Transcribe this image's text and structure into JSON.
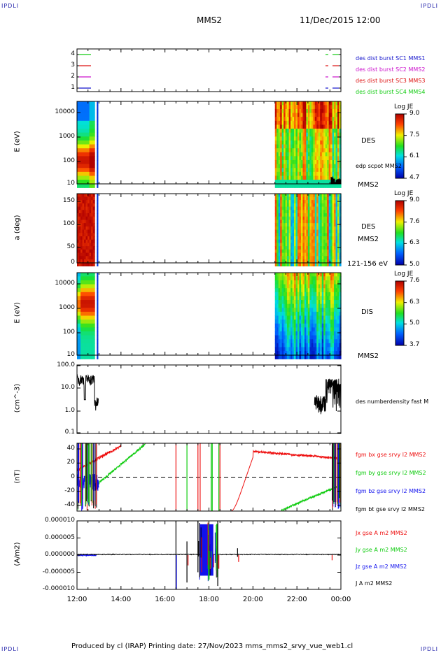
{
  "header": {
    "corner_tl": "IPDLI",
    "corner_tr": "IPDLI",
    "spacecraft": "MMS2",
    "date": "11/Dec/2015 12:00"
  },
  "footer": {
    "text": "Produced by cl (IRAP)   Printing date: 27/Nov/2023   mms_mms2_srvy_vue_web1.cl",
    "corner_bl": "IPDLI",
    "corner_br": "IPDLI"
  },
  "colors": {
    "bx": "#ee1111",
    "by": "#11cc11",
    "bz": "#1111ee",
    "bt": "#000000",
    "sc1": "#1111cc",
    "sc2": "#cc11cc",
    "sc3": "#dd1111",
    "sc4": "#11cc11"
  },
  "time_axis": {
    "ticks": [
      "12:00",
      "14:00",
      "16:00",
      "18:00",
      "20:00",
      "22:00",
      "00:00"
    ]
  },
  "chart_data": [
    {
      "type": "line",
      "id": "burst",
      "yticks": [
        "4",
        "3",
        "2",
        "1"
      ],
      "legend": [
        {
          "label": "des dist burst SC1 MMS1",
          "color": "#1111cc"
        },
        {
          "label": "des dist burst SC2 MMS2",
          "color": "#cc11cc"
        },
        {
          "label": "des dist burst SC3 MMS3",
          "color": "#dd1111"
        },
        {
          "label": "des dist burst SC4 MMS4",
          "color": "#11cc11"
        }
      ]
    },
    {
      "type": "heatmap",
      "id": "des_energy",
      "ylabel": "E (eV)",
      "yticks": [
        "10000",
        "1000",
        "100",
        "10"
      ],
      "side_label": "DES",
      "sub_label": "edp scpot MMS2",
      "bottom_label": "MMS2",
      "colorbar": {
        "title": "Log JE",
        "ticks": [
          "9.0",
          "7.5",
          "6.1",
          "4.7"
        ]
      }
    },
    {
      "type": "heatmap",
      "id": "des_pitch",
      "ylabel": "a (deg)",
      "yticks": [
        "150",
        "100",
        "50",
        "0"
      ],
      "side_label": "DES",
      "sub_label": "MMS2",
      "bottom_label": "121-156 eV",
      "colorbar": {
        "title": "Log JE",
        "ticks": [
          "9.0",
          "7.6",
          "6.3",
          "5.0"
        ]
      }
    },
    {
      "type": "heatmap",
      "id": "dis_energy",
      "ylabel": "E (eV)",
      "yticks": [
        "10000",
        "1000",
        "100",
        "10"
      ],
      "side_label": "DIS",
      "bottom_label": "MMS2",
      "colorbar": {
        "title": "Log JE",
        "ticks": [
          "7.6",
          "6.3",
          "5.0",
          "3.7"
        ]
      }
    },
    {
      "type": "line",
      "id": "density",
      "ylabel": "(cm^-3)",
      "yticks": [
        "100.0",
        "10.0",
        "1.0",
        "0.1"
      ],
      "legend": [
        {
          "label": "des numberdensity fast M",
          "color": "#000000"
        }
      ]
    },
    {
      "type": "line",
      "id": "bfield",
      "ylabel": "(nT)",
      "yticks": [
        "40",
        "20",
        "0",
        "-20",
        "-40"
      ],
      "legend": [
        {
          "label": "fgm bx gse srvy l2 MMS2",
          "color": "#ee1111"
        },
        {
          "label": "fgm by gse srvy l2 MMS2",
          "color": "#11cc11"
        },
        {
          "label": "fgm bz gse srvy l2 MMS2",
          "color": "#1111ee"
        },
        {
          "label": "fgm bt gse srvy l2 MMS2",
          "color": "#000000"
        }
      ]
    },
    {
      "type": "line",
      "id": "current",
      "ylabel": "(A/m2)",
      "yticks": [
        "0.000010",
        "0.000005",
        "0.000000",
        "-0.000005",
        "-0.000010"
      ],
      "legend": [
        {
          "label": "Jx gse A m2 MMS2",
          "color": "#ee1111"
        },
        {
          "label": "Jy gse A m2 MMS2",
          "color": "#11cc11"
        },
        {
          "label": "Jz gse A m2 MMS2",
          "color": "#1111ee"
        },
        {
          "label": "J A m2 MMS2",
          "color": "#000000"
        }
      ]
    }
  ]
}
